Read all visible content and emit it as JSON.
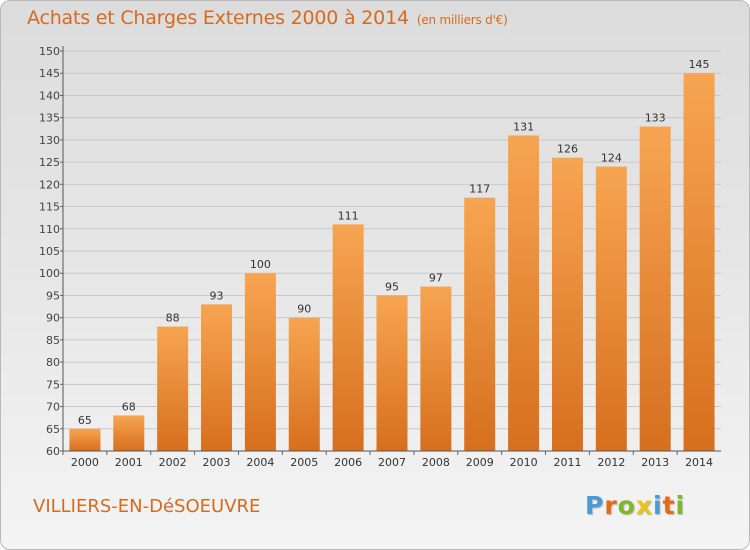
{
  "title": "Achats et Charges Externes 2000 à 2014",
  "title_unit": "(en milliers d'€)",
  "commune": "VILLIERS-EN-DéSOEUVRE",
  "brand": {
    "letters": [
      "P",
      "r",
      "o",
      "x",
      "i",
      "t",
      "i"
    ],
    "colors": [
      "#4a9ad6",
      "#e46a18",
      "#7cb829",
      "#e8c419",
      "#4a9ad6",
      "#e46a18",
      "#7cb829"
    ]
  },
  "colors": {
    "accent": "#d86a1c",
    "bar_top": "#f7a552",
    "bar_bottom": "#d66f1e"
  },
  "chart_data": {
    "type": "bar",
    "title": "Achats et Charges Externes 2000 à 2014",
    "categories": [
      "2000",
      "2001",
      "2002",
      "2003",
      "2004",
      "2005",
      "2006",
      "2007",
      "2008",
      "2009",
      "2010",
      "2011",
      "2012",
      "2013",
      "2014"
    ],
    "values": [
      65,
      68,
      88,
      93,
      100,
      90,
      111,
      95,
      97,
      117,
      131,
      126,
      124,
      133,
      145
    ],
    "ylim": [
      60,
      150
    ],
    "yticks": [
      60,
      65,
      70,
      75,
      80,
      85,
      90,
      95,
      100,
      105,
      110,
      115,
      120,
      125,
      130,
      135,
      140,
      145,
      150
    ],
    "grid": true,
    "xlabel": "",
    "ylabel": ""
  }
}
